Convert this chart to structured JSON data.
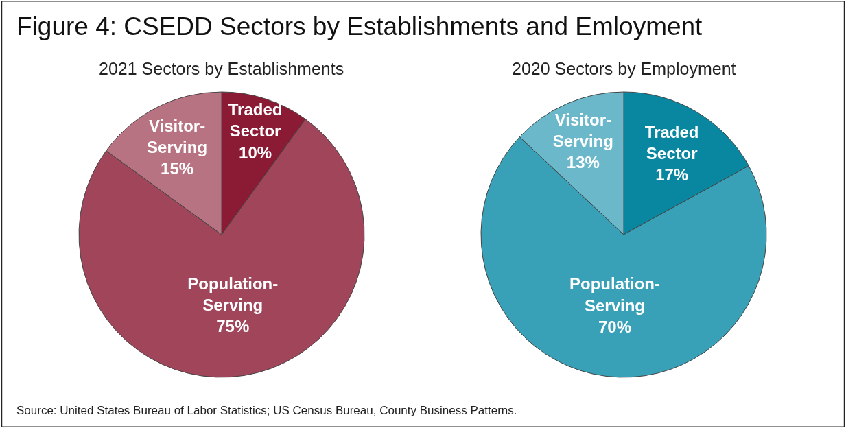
{
  "chart_data": [
    {
      "type": "other",
      "title": "Figure 4: CSEDD Sectors by Establishments and Emloyment",
      "annotations": [
        "Source: United States Bureau of Labor Statistics; US Census Bureau, County Business Patterns."
      ]
    },
    {
      "type": "pie",
      "title": "2021 Sectors by Establishments",
      "categories": [
        "Traded Sector",
        "Population-Serving",
        "Visitor-Serving"
      ],
      "values": [
        10,
        75,
        15
      ],
      "colors": [
        "#8b1a34",
        "#a0455a",
        "#b87382"
      ],
      "value_labels": [
        "10%",
        "75%",
        "15%"
      ]
    },
    {
      "type": "pie",
      "title": "2020 Sectors by Employment",
      "categories": [
        "Traded Sector",
        "Population-Serving",
        "Visitor-Serving"
      ],
      "values": [
        17,
        70,
        13
      ],
      "colors": [
        "#0a87a0",
        "#38a0b7",
        "#6cb8cb"
      ],
      "value_labels": [
        "17%",
        "70%",
        "13%"
      ]
    }
  ]
}
